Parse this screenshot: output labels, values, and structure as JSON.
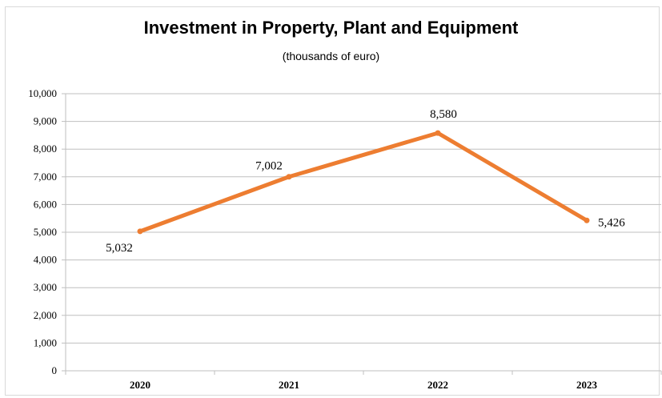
{
  "chart_data": {
    "type": "line",
    "title": "Investment in Property, Plant and Equipment",
    "subtitle": "(thousands of euro)",
    "xlabel": "",
    "ylabel": "",
    "categories": [
      "2020",
      "2021",
      "2022",
      "2023"
    ],
    "series": [
      {
        "values": [
          5032,
          7002,
          8580,
          5426
        ],
        "labels": [
          "5,032",
          "7,002",
          "8,580",
          "5,426"
        ],
        "color": "#ed7d31"
      }
    ],
    "ylim": [
      0,
      10000
    ],
    "yticks": [
      "0",
      "1,000",
      "2,000",
      "3,000",
      "4,000",
      "5,000",
      "6,000",
      "7,000",
      "8,000",
      "9,000",
      "10,000"
    ],
    "grid": true,
    "legend": "none"
  },
  "colors": {
    "line": "#ed7d31",
    "grid": "#bfbfbf"
  }
}
